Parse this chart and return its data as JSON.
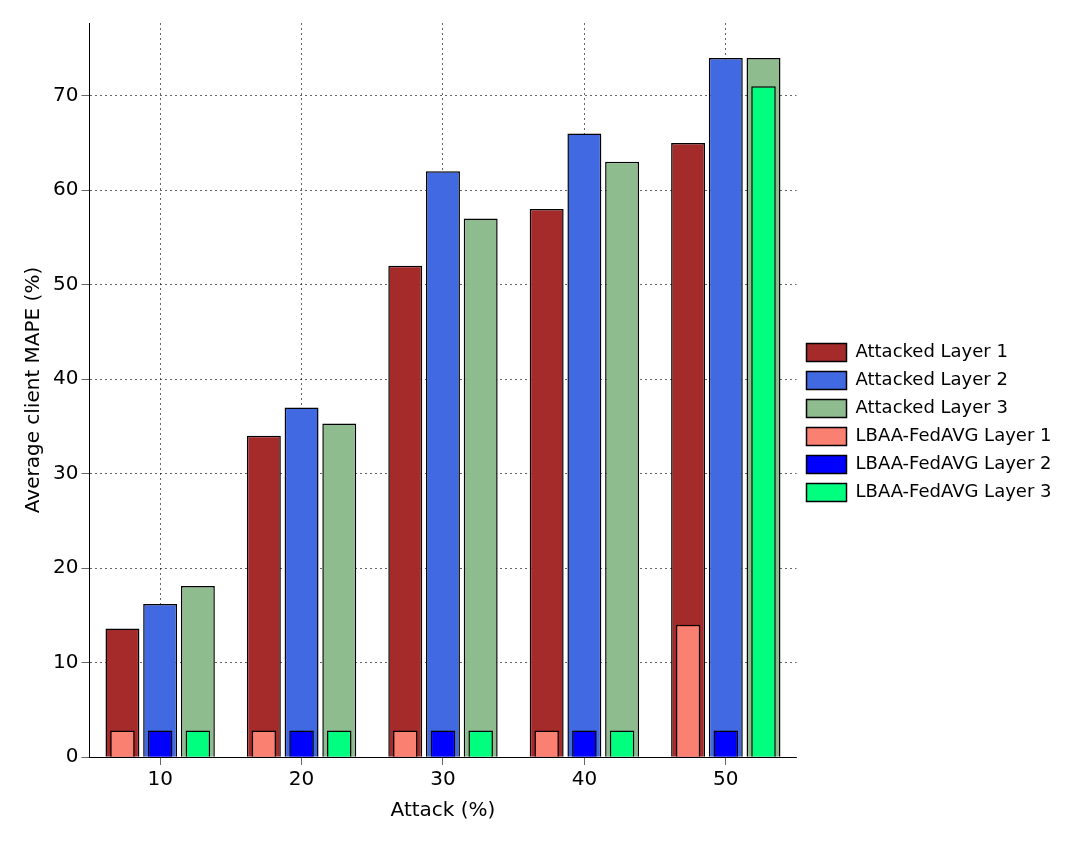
{
  "chart_data": {
    "type": "bar",
    "xlabel": "Attack (%)",
    "ylabel": "Average client MAPE (%)",
    "categories": [
      "10",
      "20",
      "30",
      "40",
      "50"
    ],
    "series": [
      {
        "name": "Attacked Layer 1",
        "color": "#a52a2a",
        "values": [
          13.6,
          34,
          52,
          58,
          65
        ]
      },
      {
        "name": "Attacked Layer 2",
        "color": "#4169e1",
        "values": [
          16.2,
          37,
          62,
          66,
          74
        ]
      },
      {
        "name": "Attacked Layer 3",
        "color": "#8fbc8f",
        "values": [
          18.1,
          35.3,
          57,
          63,
          74
        ]
      },
      {
        "name": "LBAA-FedAVG Layer 1",
        "color": "#fa8072",
        "values": [
          2.8,
          2.8,
          2.8,
          2.8,
          14
        ]
      },
      {
        "name": "LBAA-FedAVG Layer 2",
        "color": "#0000ff",
        "values": [
          2.8,
          2.8,
          2.8,
          2.8,
          2.8
        ]
      },
      {
        "name": "LBAA-FedAVG Layer 3",
        "color": "#00ff7f",
        "values": [
          2.8,
          2.8,
          2.8,
          2.8,
          71
        ]
      }
    ],
    "ylim": [
      0,
      77.7
    ],
    "yticks": [
      0,
      10,
      20,
      30,
      40,
      50,
      60,
      70
    ],
    "grid": true,
    "legend": "right"
  }
}
